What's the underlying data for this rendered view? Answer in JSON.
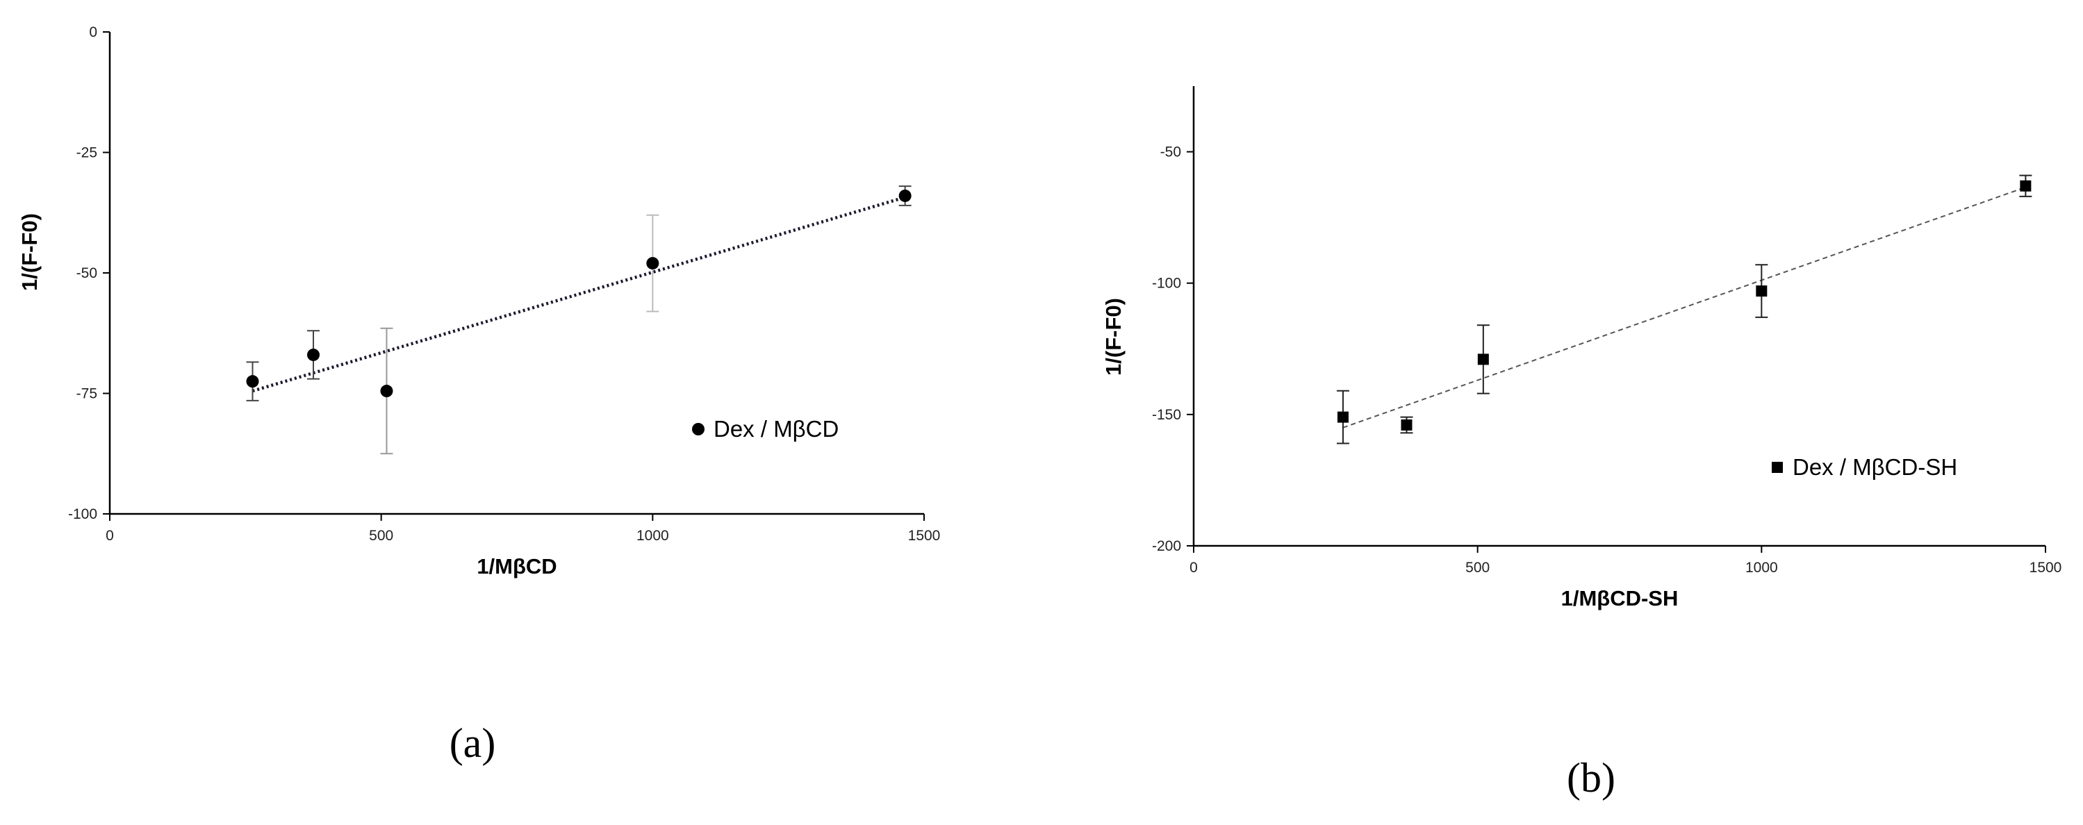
{
  "chart_data": [
    {
      "type": "scatter",
      "panel_label": "(a)",
      "xlabel": "1/MβCD",
      "ylabel": "1/(F-F0)",
      "xlim": [
        0,
        1500
      ],
      "ylim": [
        -100,
        0
      ],
      "xticks": [
        0,
        500,
        1000,
        1500
      ],
      "yticks": [
        0,
        -25,
        -50,
        -75,
        -100
      ],
      "legend_position": "right",
      "marker": "circle",
      "trendline": {
        "style": "dotted",
        "x": [
          263,
          1465
        ],
        "y": [
          -74.5,
          -34.3
        ]
      },
      "series": [
        {
          "name": "Dex / MβCD",
          "x": [
            263,
            375,
            510,
            1000,
            1465
          ],
          "y": [
            -72.5,
            -67,
            -74.5,
            -48,
            -34
          ],
          "error": [
            4,
            5,
            13,
            10,
            2
          ]
        }
      ]
    },
    {
      "type": "scatter",
      "panel_label": "(b)",
      "xlabel": "1/MβCD-SH",
      "ylabel": "1/(F-F0)",
      "xlim": [
        0,
        1500
      ],
      "ylim": [
        -200,
        -25
      ],
      "xticks": [
        0,
        500,
        1000,
        1500
      ],
      "yticks": [
        -50,
        -100,
        -150,
        -200
      ],
      "legend_position": "bottom-right",
      "marker": "square",
      "trendline": {
        "style": "dashed",
        "x": [
          263,
          1465
        ],
        "y": [
          -155,
          -63.5
        ]
      },
      "series": [
        {
          "name": "Dex / MβCD-SH",
          "x": [
            263,
            375,
            510,
            1000,
            1465
          ],
          "y": [
            -151,
            -154,
            -129,
            -103,
            -63
          ],
          "error": [
            10,
            3,
            13,
            10,
            4
          ]
        }
      ]
    }
  ]
}
